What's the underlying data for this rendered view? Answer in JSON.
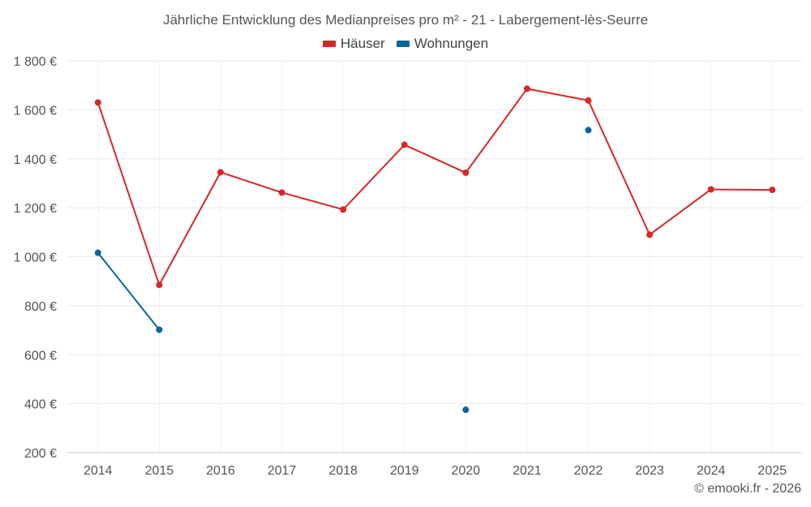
{
  "chart_data": {
    "type": "line",
    "title": "Jährliche Entwicklung des Medianpreises pro m² - 21 - Labergement-lès-Seurre",
    "categories": [
      "2014",
      "2015",
      "2016",
      "2017",
      "2018",
      "2019",
      "2020",
      "2021",
      "2022",
      "2023",
      "2024",
      "2025"
    ],
    "series": [
      {
        "name": "Häuser",
        "color": "#d62728",
        "values": [
          1630,
          885,
          1345,
          1262,
          1193,
          1457,
          1343,
          1686,
          1638,
          1090,
          1275,
          1273
        ]
      },
      {
        "name": "Wohnungen",
        "color": "#0a6699",
        "values": [
          1016,
          702,
          null,
          null,
          null,
          null,
          375,
          null,
          1517,
          null,
          null,
          null
        ]
      }
    ],
    "yticks": [
      200,
      400,
      600,
      800,
      1000,
      1200,
      1400,
      1600,
      1800
    ],
    "ytick_labels": [
      "200 €",
      "400 €",
      "600 €",
      "800 €",
      "1 000 €",
      "1 200 €",
      "1 400 €",
      "1 600 €",
      "1 800 €"
    ],
    "ylim": [
      200,
      1800
    ],
    "grid": true,
    "legend_position": "top-center"
  },
  "legend": [
    {
      "label": "Häuser",
      "color": "#d62728"
    },
    {
      "label": "Wohnungen",
      "color": "#0a6699"
    }
  ],
  "credit": "© emooki.fr - 2026"
}
